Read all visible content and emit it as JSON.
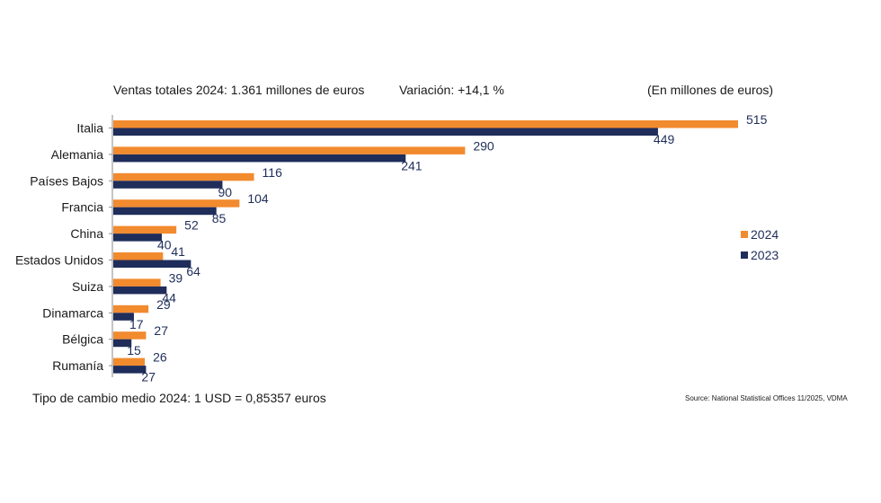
{
  "header": {
    "total": "Ventas totales 2024: 1.361 millones de euros",
    "variation": "Variación: +14,1 %",
    "unit": "(En millones de euros)"
  },
  "footer": {
    "exchange_rate": "Tipo de cambio medio 2024: 1 USD = 0,85357 euros",
    "source": "Source: National Statistical Offices 11/2025, VDMA"
  },
  "chart_data": {
    "type": "bar",
    "orientation": "horizontal",
    "categories": [
      "Italia",
      "Alemania",
      "Países Bajos",
      "Francia",
      "China",
      "Estados Unidos",
      "Suiza",
      "Dinamarca",
      "Bélgica",
      "Rumanía"
    ],
    "series": [
      {
        "name": "2024",
        "color": "#f28a2e",
        "values": [
          515,
          290,
          116,
          104,
          52,
          41,
          39,
          29,
          27,
          26
        ]
      },
      {
        "name": "2023",
        "color": "#1f2d5a",
        "values": [
          449,
          241,
          90,
          85,
          40,
          64,
          44,
          17,
          15,
          27
        ]
      }
    ],
    "legend_position": "right",
    "xlim": [
      0,
      515
    ],
    "grid": false
  }
}
